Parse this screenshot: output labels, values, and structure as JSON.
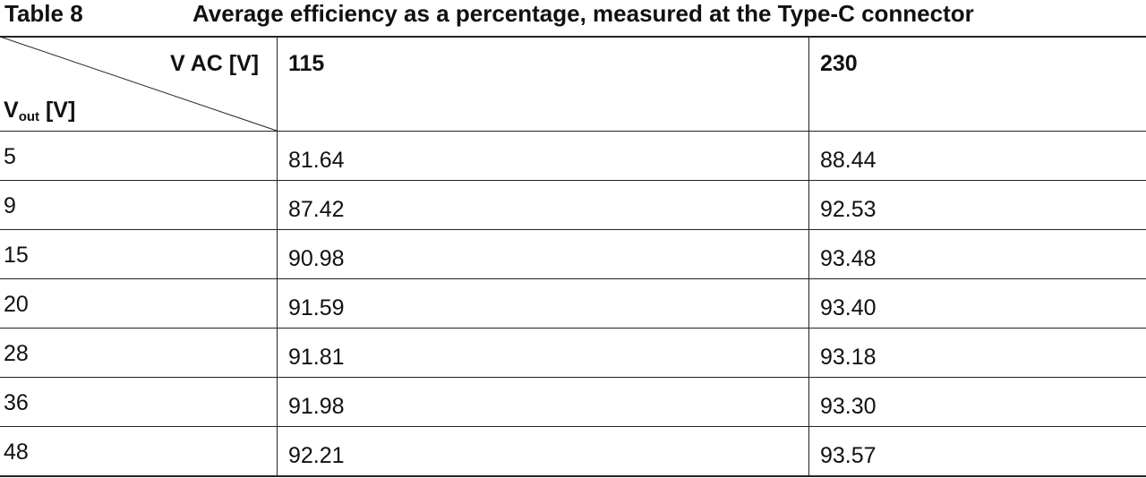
{
  "header": {
    "table_label": "Table 8",
    "title": "Average efficiency as a percentage, measured at the Type-C connector"
  },
  "table": {
    "corner": {
      "column_label": "V AC [V]",
      "row_label": "V",
      "row_label_sub": "out",
      "row_label_unit": "[V]"
    },
    "columns": [
      "115",
      "230"
    ],
    "rows": [
      [
        "5",
        "81.64",
        "88.44"
      ],
      [
        "9",
        "87.42",
        "92.53"
      ],
      [
        "15",
        "90.98",
        "93.48"
      ],
      [
        "20",
        "91.59",
        "93.40"
      ],
      [
        "28",
        "91.81",
        "93.18"
      ],
      [
        "36",
        "91.98",
        "93.30"
      ],
      [
        "48",
        "92.21",
        "93.57"
      ]
    ]
  }
}
